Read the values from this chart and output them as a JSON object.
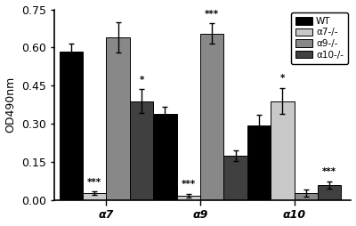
{
  "groups": [
    "α7",
    "α9",
    "α10"
  ],
  "series": [
    "WT",
    "α7-/-",
    "α9-/-",
    "α10-/-"
  ],
  "colors": [
    "#000000",
    "#c8c8c8",
    "#888888",
    "#404040"
  ],
  "values": [
    [
      0.585,
      0.028,
      0.64,
      0.39
    ],
    [
      0.34,
      0.018,
      0.655,
      0.175
    ],
    [
      0.295,
      0.39,
      0.028,
      0.06
    ]
  ],
  "errors": [
    [
      0.032,
      0.008,
      0.058,
      0.048
    ],
    [
      0.028,
      0.008,
      0.04,
      0.022
    ],
    [
      0.042,
      0.052,
      0.015,
      0.015
    ]
  ],
  "significance": [
    [
      "",
      "***",
      "",
      "*"
    ],
    [
      "",
      "***",
      "***",
      ""
    ],
    [
      "",
      "*",
      "",
      "***"
    ]
  ],
  "ylabel": "OD490nm",
  "ylim": [
    0,
    0.75
  ],
  "yticks": [
    0.0,
    0.15,
    0.3,
    0.45,
    0.6,
    0.75
  ],
  "bar_width": 0.19,
  "background_color": "#ffffff",
  "legend_fontsize": 7.5,
  "tick_fontsize": 9,
  "ylabel_fontsize": 9,
  "sig_fontsize": 7.5
}
